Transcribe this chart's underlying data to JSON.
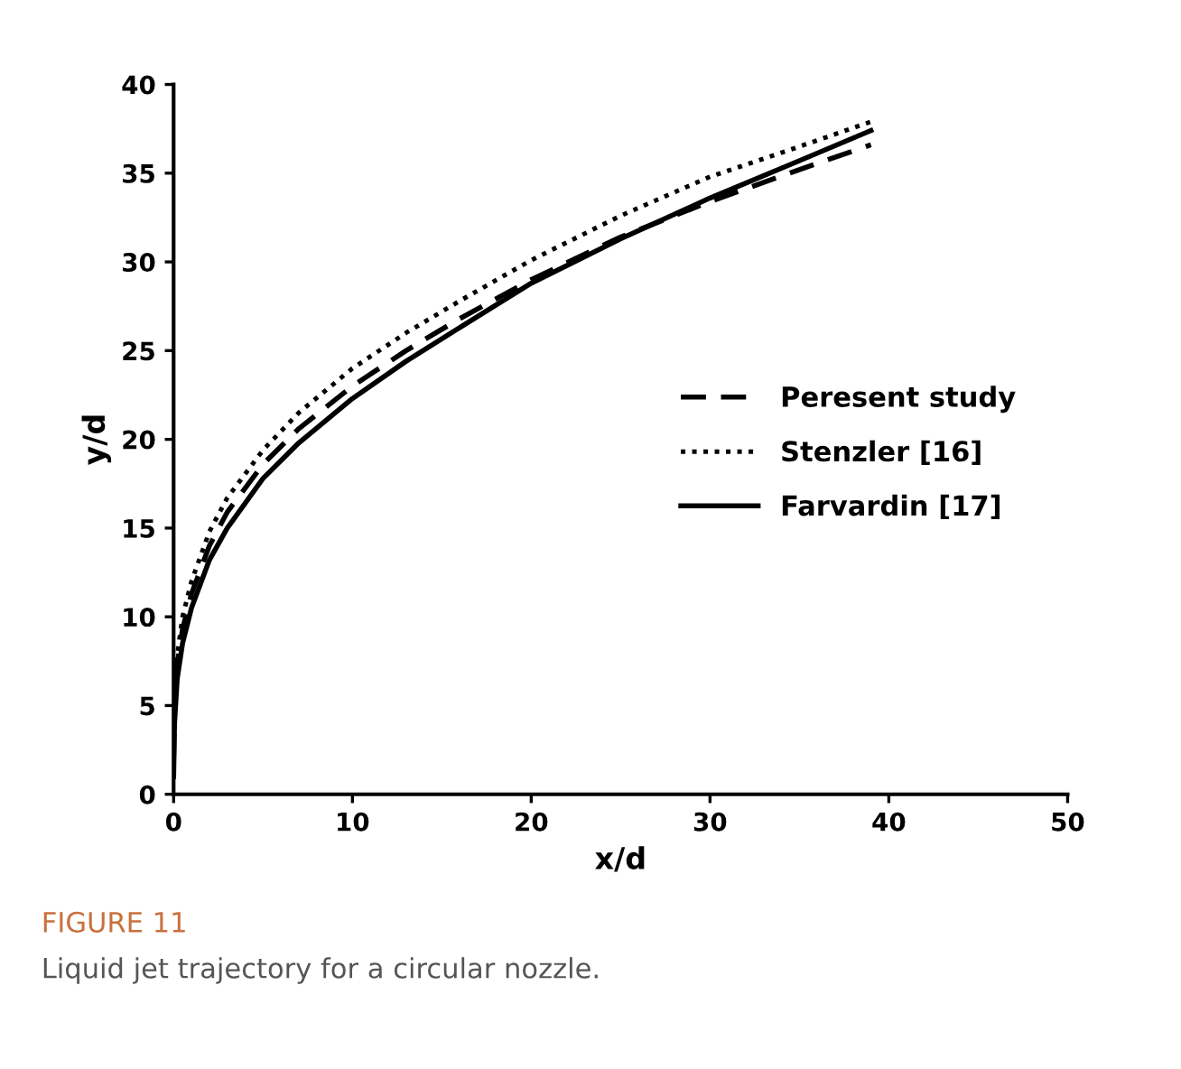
{
  "chart_data": {
    "type": "line",
    "xlabel": "x/d",
    "ylabel": "y/d",
    "xlim": [
      0,
      50
    ],
    "xticks": [
      0,
      10,
      20,
      30,
      40,
      50
    ],
    "ylim": [
      0,
      40
    ],
    "yticks": [
      0,
      5,
      10,
      15,
      20,
      25,
      30,
      35,
      40
    ],
    "grid": false,
    "legend": "right",
    "marker": "none",
    "series": [
      {
        "name": "Peresent study",
        "color": "#000000",
        "line_style": "dashed",
        "x": [
          0,
          0.05,
          0.2,
          0.5,
          1,
          2,
          3,
          5,
          7,
          10,
          13,
          16,
          20,
          25,
          30,
          35,
          39
        ],
        "values": [
          2,
          5,
          7.3,
          9.3,
          11.3,
          14,
          15.9,
          18.6,
          20.6,
          23,
          25,
          26.8,
          29,
          31.4,
          33.4,
          35.2,
          36.6
        ]
      },
      {
        "name": "Stenzler [16]",
        "color": "#000000",
        "line_style": "dotted",
        "x": [
          0,
          0.05,
          0.2,
          0.5,
          1,
          2,
          3,
          5,
          7,
          10,
          13,
          16,
          20,
          25,
          30,
          35,
          39
        ],
        "values": [
          3,
          5.5,
          7.8,
          10,
          12,
          14.8,
          16.7,
          19.4,
          21.5,
          24,
          26,
          27.8,
          30.1,
          32.6,
          34.8,
          36.5,
          37.9
        ]
      },
      {
        "name": "Farvardin [17]",
        "color": "#000000",
        "line_style": "solid",
        "x": [
          0,
          0.05,
          0.2,
          0.5,
          1,
          2,
          3,
          5,
          7,
          10,
          13,
          16,
          20,
          25,
          30,
          35,
          39
        ],
        "values": [
          1,
          4,
          6.5,
          8.5,
          10.5,
          13.2,
          15,
          17.8,
          19.8,
          22.3,
          24.4,
          26.3,
          28.8,
          31.3,
          33.6,
          35.7,
          37.4
        ]
      }
    ],
    "annotations": [
      "FIGURE 11",
      "Liquid jet trajectory for a circular nozzle."
    ]
  }
}
